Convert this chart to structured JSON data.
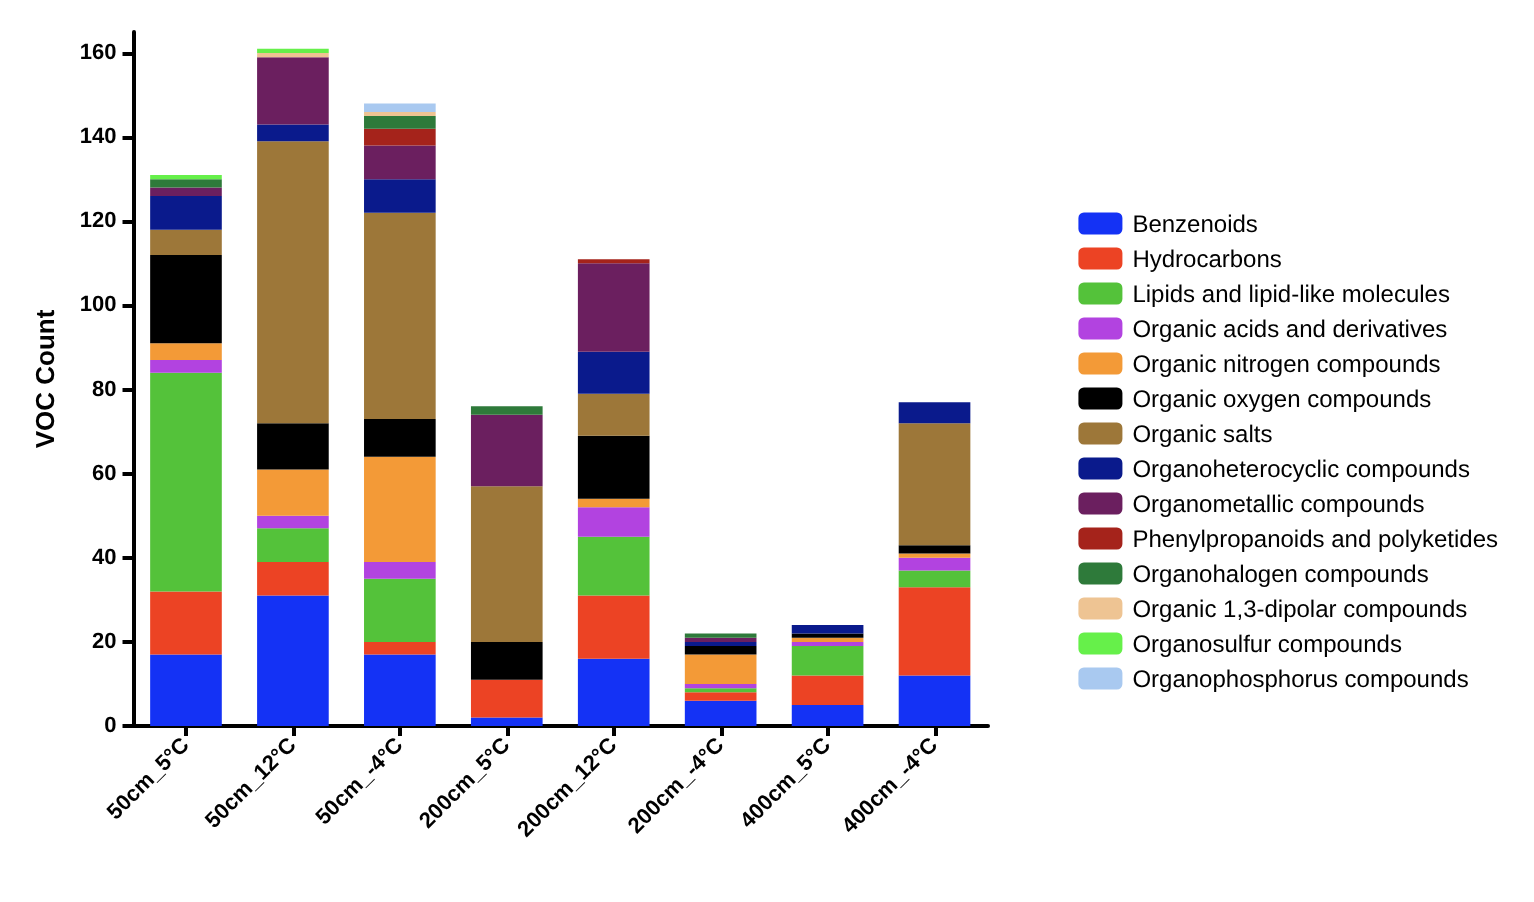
{
  "chart_data": {
    "type": "bar",
    "stacked": true,
    "ylabel": "VOC Count",
    "categories": [
      "50cm_5°C",
      "50cm_12°C",
      "50cm_-4°C",
      "200cm_5°C",
      "200cm_12°C",
      "200cm_-4°C",
      "400cm_5°C",
      "400cm_-4°C"
    ],
    "ylim": [
      0,
      165
    ],
    "yticks": [
      0,
      20,
      40,
      60,
      80,
      100,
      120,
      140,
      160
    ],
    "grid": false,
    "legend": "right",
    "series": [
      {
        "name": "Benzenoids",
        "color": "#1432f5",
        "values": [
          17,
          31,
          17,
          2,
          16,
          6,
          5,
          12
        ]
      },
      {
        "name": "Hydrocarbons",
        "color": "#ec4324",
        "values": [
          15,
          8,
          3,
          9,
          15,
          2,
          7,
          21
        ]
      },
      {
        "name": "Lipids and lipid-like molecules",
        "color": "#54c23a",
        "values": [
          52,
          8,
          15,
          0,
          14,
          1,
          7,
          4
        ]
      },
      {
        "name": "Organic acids and derivatives",
        "color": "#b243e0",
        "values": [
          3,
          3,
          4,
          0,
          7,
          1,
          1,
          3
        ]
      },
      {
        "name": "Organic nitrogen compounds",
        "color": "#f39a37",
        "values": [
          4,
          11,
          25,
          0,
          2,
          7,
          1,
          1
        ]
      },
      {
        "name": "Organic oxygen compounds",
        "color": "#000000",
        "values": [
          21,
          11,
          9,
          9,
          15,
          2,
          1,
          2
        ]
      },
      {
        "name": "Organic salts",
        "color": "#9d7739",
        "values": [
          6,
          67,
          49,
          37,
          10,
          0,
          0,
          29
        ]
      },
      {
        "name": "Organoheterocyclic compounds",
        "color": "#0a1a8c",
        "values": [
          8,
          4,
          8,
          0,
          10,
          1,
          2,
          5
        ]
      },
      {
        "name": "Organometallic compounds",
        "color": "#6b1f5f",
        "values": [
          2,
          16,
          8,
          17,
          21,
          1,
          0,
          0
        ]
      },
      {
        "name": "Phenylpropanoids and polyketides",
        "color": "#a5231b",
        "values": [
          0,
          0,
          4,
          0,
          1,
          0,
          0,
          0
        ]
      },
      {
        "name": "Organohalogen compounds",
        "color": "#2e7a3a",
        "values": [
          2,
          0,
          3,
          2,
          0,
          1,
          0,
          0
        ]
      },
      {
        "name": "Organic 1,3-dipolar compounds",
        "color": "#eec493",
        "values": [
          0,
          1,
          1,
          0,
          0,
          0,
          0,
          0
        ]
      },
      {
        "name": "Organosulfur compounds",
        "color": "#66f04a",
        "values": [
          1,
          1,
          0,
          0,
          0,
          0,
          0,
          0
        ]
      },
      {
        "name": "Organophosphorus compounds",
        "color": "#a9c9f0",
        "values": [
          0,
          0,
          2,
          0,
          0,
          0,
          0,
          0
        ]
      }
    ]
  }
}
